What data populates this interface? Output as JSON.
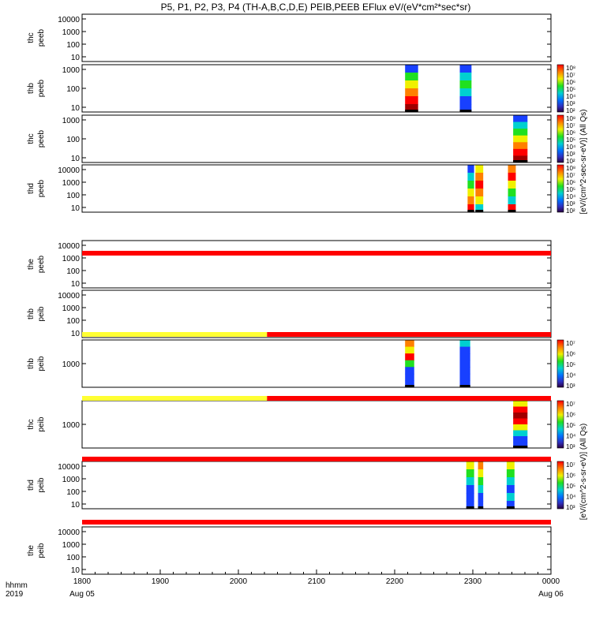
{
  "title": "P5, P1, P2, P3, P4 (TH-A,B,C,D,E) PEIB,PEEB EFlux eV/(eV*cm²*sec*sr)",
  "colorbar_label_electrons": "[eV/(cm^2-sec-sr-eV)] (All Qs)",
  "colorbar_label_ions": "[eV/(cm^2-s-sr-eV)] (All Qs)",
  "time_axis": {
    "row_label": "hhmm",
    "year_label": "2019",
    "ticks": [
      "1800",
      "1900",
      "2000",
      "2100",
      "2200",
      "2300",
      "0000"
    ],
    "start_date_label": "Aug 05",
    "end_date_label": "Aug 06"
  },
  "chart_data": {
    "type": "heatmap",
    "x_unit": "hhmm",
    "x_range": [
      "2019-08-05 18:00",
      "2019-08-06 00:00"
    ],
    "colormap": "rainbow",
    "colorbar_labels_electron": [
      "10⁸",
      "10⁷",
      "10⁶",
      "10⁵",
      "10⁴",
      "10³",
      "10²"
    ],
    "colorbar_labels_ion_b": [
      "10⁷",
      "10⁶",
      "10⁵",
      "10⁴",
      "10³"
    ],
    "panels": [
      {
        "probe": "thc",
        "species": "peeb",
        "yticks": [
          "10000",
          "1000",
          "100",
          "10"
        ],
        "data": [],
        "colorbar": "none"
      },
      {
        "probe": "thb",
        "species": "peeb",
        "yticks": [
          "1000",
          "100",
          "10"
        ],
        "colorbar": "electron",
        "data": [
          {
            "start": "22:08",
            "end": "22:18",
            "profile": [
              "blue",
              "green",
              "yellow",
              "orange",
              "red",
              "darkred"
            ]
          },
          {
            "start": "22:50",
            "end": "22:59",
            "profile": [
              "blue",
              "cyan",
              "green",
              "cyan",
              "blue",
              "blue"
            ]
          }
        ]
      },
      {
        "probe": "thc",
        "species": "peeb",
        "yticks": [
          "1000",
          "100",
          "10"
        ],
        "colorbar": "electron",
        "data": [
          {
            "start": "23:31",
            "end": "23:42",
            "profile": [
              "blue",
              "cyan",
              "green",
              "yellow",
              "orange",
              "red",
              "darkred"
            ]
          }
        ]
      },
      {
        "probe": "thd",
        "species": "peeb",
        "yticks": [
          "10000",
          "1000",
          "100",
          "10"
        ],
        "colorbar": "electron",
        "data": [
          {
            "start": "22:56",
            "end": "23:01",
            "profile": [
              "blue",
              "cyan",
              "green",
              "yellow",
              "orange",
              "red"
            ]
          },
          {
            "start": "23:02",
            "end": "23:08",
            "profile": [
              "yellow",
              "orange",
              "red",
              "orange",
              "yellow",
              "cyan"
            ]
          },
          {
            "start": "23:27",
            "end": "23:33",
            "profile": [
              "orange",
              "red",
              "yellow",
              "green",
              "cyan",
              "red"
            ]
          }
        ]
      },
      {
        "probe": "the",
        "species": "peeb",
        "yticks": [
          "10000",
          "1000",
          "100",
          "10"
        ],
        "data": [],
        "colorbar": "none"
      },
      {
        "probe": "thb",
        "species": "peib",
        "yticks": [
          "10000",
          "1000",
          "100",
          "10"
        ],
        "data": [],
        "colorbar": "none"
      },
      {
        "probe": "thb",
        "species": "peib",
        "yticks": [
          "1000"
        ],
        "colorbar": "ion",
        "data": [
          {
            "start": "22:08",
            "end": "22:15",
            "profile": [
              "orange",
              "yellow",
              "red",
              "green",
              "blue",
              "blue",
              "blue"
            ]
          },
          {
            "start": "22:50",
            "end": "22:58",
            "profile": [
              "cyan",
              "blue",
              "blue",
              "blue",
              "blue",
              "blue",
              "blue"
            ]
          }
        ]
      },
      {
        "probe": "thc",
        "species": "peib",
        "yticks": [
          "1000"
        ],
        "colorbar": "ion",
        "data": [
          {
            "start": "23:31",
            "end": "23:42",
            "profile": [
              "yellow",
              "red",
              "darkred",
              "red",
              "yellow",
              "cyan",
              "blue",
              "blue"
            ]
          }
        ]
      },
      {
        "probe": "thd",
        "species": "peib",
        "yticks": [
          "10000",
          "1000",
          "100",
          "10"
        ],
        "colorbar": "ion",
        "data": [
          {
            "start": "22:55",
            "end": "23:01",
            "profile": [
              "yellow",
              "green",
              "cyan",
              "blue",
              "blue",
              "blue"
            ]
          },
          {
            "start": "23:04",
            "end": "23:08",
            "profile": [
              "orange",
              "yellow",
              "green",
              "cyan",
              "blue",
              "blue"
            ]
          },
          {
            "start": "23:26",
            "end": "23:32",
            "profile": [
              "yellow",
              "green",
              "cyan",
              "blue",
              "cyan",
              "blue"
            ]
          }
        ]
      },
      {
        "probe": "the",
        "species": "peib",
        "yticks": [
          "10000",
          "1000",
          "100",
          "10"
        ],
        "data": [],
        "colorbar": "none"
      }
    ],
    "status_bars": [
      {
        "after_panel": 4,
        "segments": [
          {
            "start": "18:00",
            "end": "24:00",
            "color": "red"
          }
        ]
      },
      {
        "after_panel": 5,
        "segments": [
          {
            "start": "18:00",
            "end": "20:22",
            "color": "yellow"
          },
          {
            "start": "20:22",
            "end": "24:00",
            "color": "red"
          }
        ]
      },
      {
        "after_panel": 6,
        "segments": [
          {
            "start": "18:00",
            "end": "20:22",
            "color": "yellow"
          },
          {
            "start": "20:22",
            "end": "24:00",
            "color": "red"
          }
        ]
      },
      {
        "after_panel": 7,
        "segments": [
          {
            "start": "18:00",
            "end": "24:00",
            "color": "red"
          }
        ]
      },
      {
        "after_panel": 8,
        "segments": [
          {
            "start": "18:00",
            "end": "24:00",
            "color": "red"
          }
        ]
      }
    ]
  }
}
